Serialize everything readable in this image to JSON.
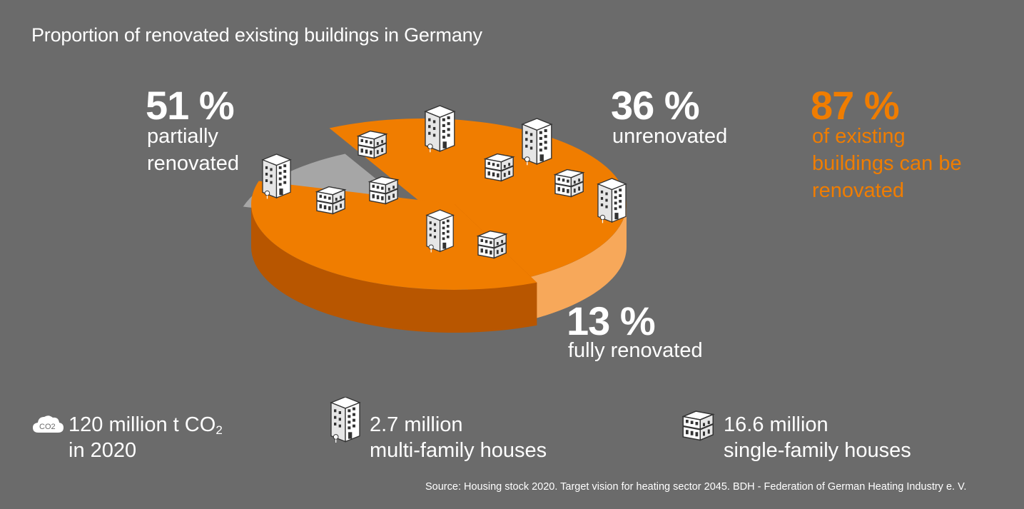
{
  "title": "Proportion of renovated existing buildings in Germany",
  "chart_data": {
    "type": "pie",
    "title": "Proportion of renovated existing buildings in Germany",
    "slices": [
      {
        "label": "partially renovated",
        "value": 51,
        "display": "51 %",
        "color": "#f07d00"
      },
      {
        "label": "unrenovated",
        "value": 36,
        "display": "36 %",
        "color": "#f07d00"
      },
      {
        "label": "fully renovated",
        "value": 13,
        "display": "13 %",
        "color": "#a6a6a6"
      }
    ],
    "annotation": {
      "value": 87,
      "display": "87 %",
      "text_lines": [
        "of existing",
        "buildings can be",
        "renovated"
      ]
    }
  },
  "labels": {
    "partial": {
      "pct": "51 %",
      "line1": "partially",
      "line2": "renovated"
    },
    "unrenovated": {
      "pct": "36 %",
      "line1": "unrenovated"
    },
    "fully": {
      "pct": "13 %",
      "line1": "fully renovated"
    },
    "renovatable": {
      "pct": "87 %",
      "line1": "of existing",
      "line2": "buildings can be",
      "line3": "renovated"
    }
  },
  "stats": {
    "co2": {
      "icon": "co2-cloud-icon",
      "icon_text": "CO2",
      "line1_pre": "120 million t CO",
      "line1_sub": "2",
      "line2": "in 2020"
    },
    "multi": {
      "icon": "apartment-building-icon",
      "line1": "2.7 million",
      "line2": "multi-family houses"
    },
    "single": {
      "icon": "house-icon",
      "line1": "16.6 million",
      "line2": "single-family houses"
    }
  },
  "source": "Source: Housing stock 2020. Target vision for heating sector 2045. BDH - Federation of German Heating Industry e. V.",
  "colors": {
    "background": "#6b6b6b",
    "orange_top": "#f07d00",
    "orange_side_dark": "#b85600",
    "orange_side_light": "#f7a85a",
    "gray_slice": "#a6a6a6",
    "gray_shadow": "#787878"
  }
}
